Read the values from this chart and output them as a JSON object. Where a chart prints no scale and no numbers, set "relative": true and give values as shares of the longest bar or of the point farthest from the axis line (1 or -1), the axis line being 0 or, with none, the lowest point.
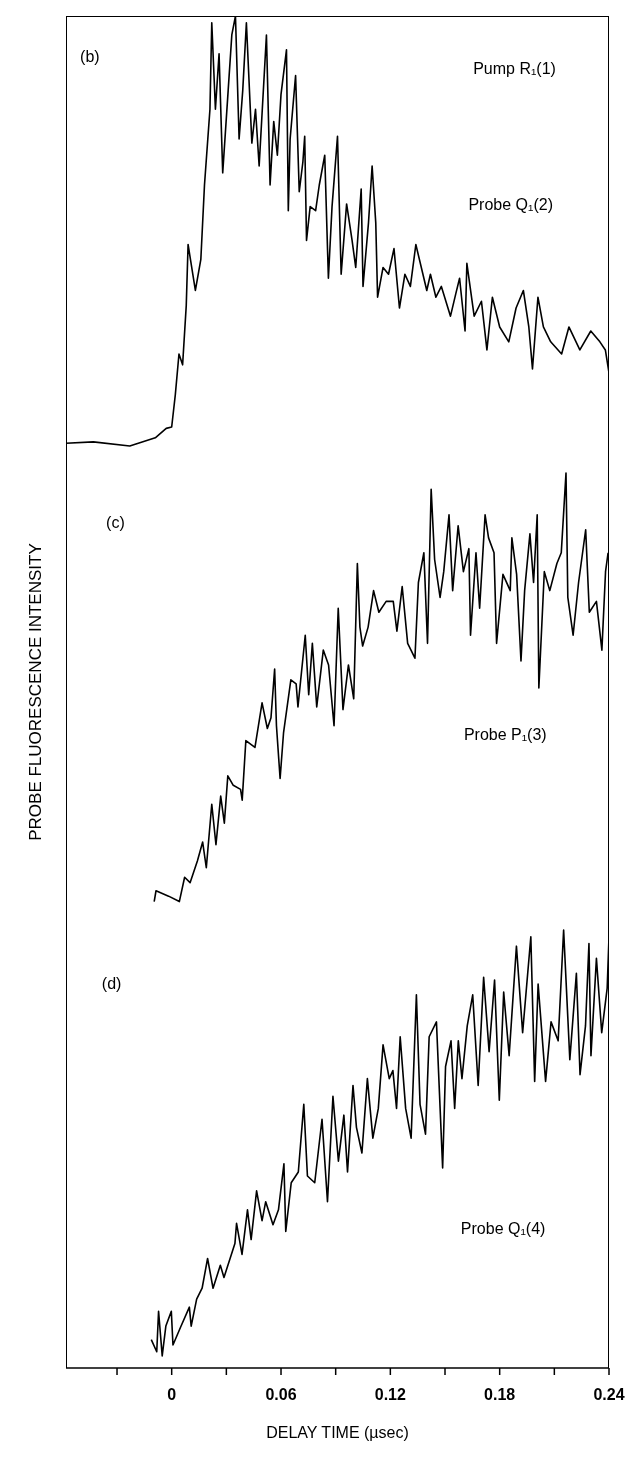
{
  "chart_data": {
    "type": "line",
    "relative": true,
    "xlabel": "DELAY TIME (µsec)",
    "ylabel": "PROBE FLUORESCENCE INTENSITY",
    "xlim": [
      -0.058,
      0.24
    ],
    "xticks": [
      {
        "value": -0.03,
        "label": null
      },
      0,
      {
        "value": 0.03,
        "label": null
      },
      0.06,
      {
        "value": 0.09,
        "label": null
      },
      0.12,
      {
        "value": 0.15,
        "label": null
      },
      0.18,
      {
        "value": 0.21,
        "label": null
      },
      0.24
    ],
    "line_style": "solid",
    "annotations": [
      "(b)",
      "Pump R₁(1)",
      "Probe Q₁(2)",
      "(c)",
      "Probe P₁(3)",
      "(d)",
      "Probe Q₁(4)"
    ],
    "series": [
      {
        "color": "#000000",
        "x": [
          -0.058,
          -0.043,
          -0.023,
          -0.009,
          -0.003,
          0.0,
          0.002,
          0.004,
          0.006,
          0.008,
          0.009,
          0.013,
          0.016,
          0.018,
          0.021,
          0.022,
          0.024,
          0.026,
          0.028,
          0.031,
          0.033,
          0.035,
          0.037,
          0.039,
          0.041,
          0.044,
          0.046,
          0.048,
          0.052,
          0.054,
          0.056,
          0.058,
          0.06,
          0.063,
          0.064,
          0.065,
          0.068,
          0.07,
          0.072,
          0.073,
          0.074,
          0.076,
          0.079,
          0.081,
          0.084,
          0.086,
          0.088,
          0.091,
          0.093,
          0.096,
          0.099,
          0.101,
          0.104,
          0.105,
          0.108,
          0.11,
          0.112,
          0.113,
          0.116,
          0.119,
          0.122,
          0.125,
          0.128,
          0.131,
          0.134,
          0.137,
          0.14,
          0.142,
          0.145,
          0.148,
          0.153,
          0.156,
          0.158,
          0.161,
          0.162,
          0.166,
          0.17,
          0.173,
          0.176,
          0.18,
          0.185,
          0.189,
          0.193,
          0.196,
          0.198,
          0.201,
          0.204,
          0.208,
          0.214,
          0.218,
          0.224,
          0.23,
          0.235,
          0.238,
          0.24
        ],
        "values": [
          0.684,
          0.685,
          0.682,
          0.688,
          0.695,
          0.696,
          0.72,
          0.75,
          0.742,
          0.786,
          0.831,
          0.797,
          0.82,
          0.875,
          0.931,
          0.995,
          0.931,
          0.972,
          0.884,
          0.945,
          0.986,
          1,
          0.909,
          0.945,
          0.995,
          0.906,
          0.931,
          0.889,
          0.986,
          0.875,
          0.922,
          0.897,
          0.942,
          0.975,
          0.856,
          0.909,
          0.956,
          0.87,
          0.892,
          0.911,
          0.834,
          0.859,
          0.856,
          0.875,
          0.897,
          0.806,
          0.859,
          0.911,
          0.809,
          0.861,
          0.834,
          0.814,
          0.872,
          0.8,
          0.847,
          0.889,
          0.847,
          0.792,
          0.814,
          0.809,
          0.828,
          0.784,
          0.809,
          0.8,
          0.831,
          0.814,
          0.797,
          0.809,
          0.792,
          0.8,
          0.778,
          0.795,
          0.806,
          0.767,
          0.817,
          0.778,
          0.789,
          0.753,
          0.792,
          0.77,
          0.759,
          0.784,
          0.797,
          0.77,
          0.739,
          0.792,
          0.77,
          0.759,
          0.75,
          0.77,
          0.753,
          0.767,
          0.759,
          0.753,
          0.736
        ]
      },
      {
        "color": "#000000",
        "x": [
          -0.0096,
          -0.0086,
          -0.0017,
          0.0042,
          0.0071,
          0.0101,
          0.0141,
          0.017,
          0.019,
          0.022,
          0.0243,
          0.0269,
          0.0289,
          0.0308,
          0.0338,
          0.0378,
          0.0387,
          0.0407,
          0.0457,
          0.0496,
          0.0525,
          0.0545,
          0.0565,
          0.0575,
          0.0595,
          0.0614,
          0.0654,
          0.0683,
          0.0693,
          0.0733,
          0.0752,
          0.0772,
          0.0796,
          0.0832,
          0.0861,
          0.0891,
          0.0914,
          0.094,
          0.097,
          0.0999,
          0.1019,
          0.1033,
          0.1048,
          0.1078,
          0.1108,
          0.1137,
          0.1177,
          0.1216,
          0.1236,
          0.1265,
          0.1295,
          0.1335,
          0.1354,
          0.1384,
          0.1404,
          0.1424,
          0.1443,
          0.1473,
          0.1493,
          0.1522,
          0.1542,
          0.1572,
          0.1601,
          0.1631,
          0.164,
          0.167,
          0.169,
          0.172,
          0.1739,
          0.1769,
          0.1783,
          0.1818,
          0.1858,
          0.1867,
          0.1893,
          0.1917,
          0.1937,
          0.1966,
          0.1986,
          0.2006,
          0.2015,
          0.2045,
          0.2075,
          0.2114,
          0.2138,
          0.2164,
          0.2174,
          0.2203,
          0.2233,
          0.2272,
          0.2292,
          0.2331,
          0.2361,
          0.2381,
          0.2395
        ],
        "values": [
          0.345,
          0.353,
          0.349,
          0.345,
          0.363,
          0.359,
          0.375,
          0.389,
          0.37,
          0.417,
          0.387,
          0.423,
          0.403,
          0.438,
          0.431,
          0.428,
          0.42,
          0.464,
          0.459,
          0.492,
          0.473,
          0.481,
          0.517,
          0.475,
          0.436,
          0.47,
          0.509,
          0.506,
          0.489,
          0.542,
          0.498,
          0.536,
          0.489,
          0.531,
          0.52,
          0.475,
          0.562,
          0.487,
          0.52,
          0.495,
          0.595,
          0.548,
          0.534,
          0.548,
          0.575,
          0.559,
          0.567,
          0.567,
          0.545,
          0.578,
          0.536,
          0.525,
          0.581,
          0.603,
          0.536,
          0.65,
          0.598,
          0.57,
          0.589,
          0.631,
          0.575,
          0.623,
          0.589,
          0.606,
          0.542,
          0.603,
          0.562,
          0.631,
          0.614,
          0.603,
          0.536,
          0.587,
          0.575,
          0.614,
          0.587,
          0.523,
          0.575,
          0.617,
          0.581,
          0.631,
          0.503,
          0.589,
          0.575,
          0.595,
          0.603,
          0.662,
          0.57,
          0.542,
          0.581,
          0.62,
          0.559,
          0.567,
          0.531,
          0.589,
          0.603
        ]
      },
      {
        "color": "#000000",
        "x": [
          -0.0112,
          -0.0082,
          -0.0072,
          -0.0052,
          -0.0032,
          -0.0002,
          0.0007,
          0.0048,
          0.0097,
          0.0107,
          0.0137,
          0.0167,
          0.0197,
          0.0227,
          0.0267,
          0.0287,
          0.0347,
          0.0356,
          0.0386,
          0.0416,
          0.0436,
          0.0466,
          0.0496,
          0.0516,
          0.0556,
          0.0586,
          0.0616,
          0.0626,
          0.0656,
          0.0695,
          0.0725,
          0.0745,
          0.0785,
          0.0825,
          0.0855,
          0.0885,
          0.0915,
          0.0945,
          0.0965,
          0.0995,
          0.1014,
          0.1044,
          0.1074,
          0.1104,
          0.1134,
          0.116,
          0.1194,
          0.1214,
          0.1234,
          0.1254,
          0.1284,
          0.1314,
          0.1343,
          0.1363,
          0.1393,
          0.1413,
          0.1453,
          0.1487,
          0.1503,
          0.1533,
          0.1553,
          0.1573,
          0.1593,
          0.1622,
          0.1652,
          0.1682,
          0.1712,
          0.1742,
          0.1772,
          0.1798,
          0.1822,
          0.1852,
          0.1892,
          0.1926,
          0.1971,
          0.1992,
          0.2011,
          0.2052,
          0.2082,
          0.2121,
          0.2151,
          0.2185,
          0.2221,
          0.2241,
          0.2271,
          0.229,
          0.2301,
          0.2331,
          0.236,
          0.239,
          0.24
        ],
        "values": [
          0.021,
          0.012,
          0.042,
          0.009,
          0.031,
          0.042,
          0.017,
          0.03,
          0.045,
          0.031,
          0.051,
          0.059,
          0.081,
          0.059,
          0.076,
          0.067,
          0.092,
          0.107,
          0.084,
          0.117,
          0.095,
          0.131,
          0.109,
          0.123,
          0.106,
          0.117,
          0.151,
          0.101,
          0.137,
          0.145,
          0.195,
          0.142,
          0.137,
          0.184,
          0.123,
          0.201,
          0.153,
          0.187,
          0.145,
          0.209,
          0.178,
          0.159,
          0.214,
          0.17,
          0.192,
          0.239,
          0.214,
          0.22,
          0.192,
          0.245,
          0.192,
          0.17,
          0.276,
          0.195,
          0.173,
          0.245,
          0.256,
          0.148,
          0.223,
          0.242,
          0.192,
          0.242,
          0.214,
          0.253,
          0.276,
          0.209,
          0.289,
          0.234,
          0.287,
          0.198,
          0.278,
          0.231,
          0.312,
          0.248,
          0.319,
          0.212,
          0.284,
          0.212,
          0.256,
          0.242,
          0.324,
          0.228,
          0.292,
          0.217,
          0.253,
          0.314,
          0.231,
          0.303,
          0.248,
          0.281,
          0.319
        ]
      }
    ]
  }
}
